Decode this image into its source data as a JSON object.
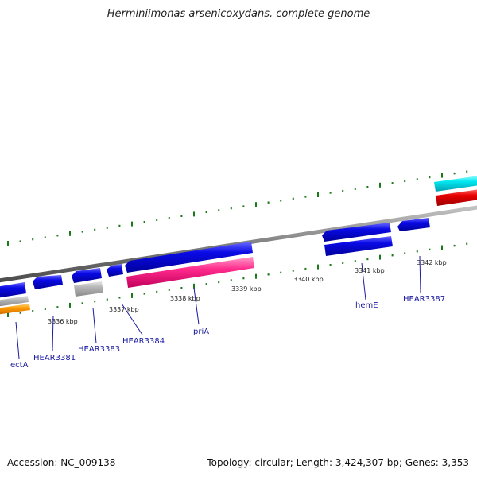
{
  "title": "Herminiimonas arsenicoxydans, complete genome",
  "footer": {
    "accession": "Accession: NC_009138",
    "summary": "Topology: circular; Length: 3,424,307 bp; Genes: 3,353"
  },
  "scale_labels": [
    "3336 kbp",
    "3337 kbp",
    "3338 kbp",
    "3339 kbp",
    "3340 kbp",
    "3341 kbp",
    "3342 kbp"
  ],
  "gene_labels": [
    "ectA",
    "HEAR3381",
    "HEAR3383",
    "HEAR3384",
    "priA",
    "hemE",
    "HEAR3387"
  ],
  "colors": {
    "backbone": "#808080",
    "tick": "#1a7a1a",
    "gene_blue": "#0a0ae6",
    "gene_gray": "#b4b4b4",
    "gene_pink": "#ff2a8c",
    "gene_orange": "#ff9a00",
    "gene_cyan": "#00e8f0",
    "gene_red": "#e80000",
    "label_blue": "#1a1aa0"
  }
}
